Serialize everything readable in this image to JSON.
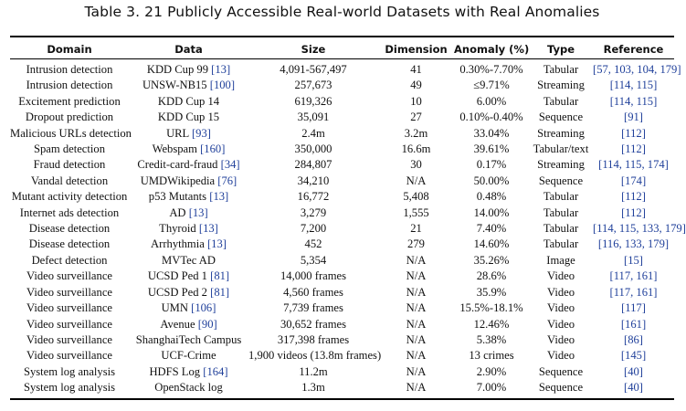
{
  "caption": "Table 3.  21 Publicly Accessible Real-world Datasets with Real Anomalies",
  "headers": [
    "Domain",
    "Data",
    "Size",
    "Dimension",
    "Anomaly (%)",
    "Type",
    "Reference"
  ],
  "rows": [
    {
      "domain": "Intrusion detection",
      "data": "KDD Cup 99",
      "data_ref": "[13]",
      "size": "4,091-567,497",
      "dimension": "41",
      "anomaly": "0.30%-7.70%",
      "type": "Tabular",
      "reference": "[57, 103, 104, 179]"
    },
    {
      "domain": "Intrusion detection",
      "data": "UNSW-NB15",
      "data_ref": "[100]",
      "size": "257,673",
      "dimension": "49",
      "anomaly": "≤9.71%",
      "type": "Streaming",
      "reference": "[114, 115]"
    },
    {
      "domain": "Excitement prediction",
      "data": "KDD Cup 14",
      "data_ref": "",
      "size": "619,326",
      "dimension": "10",
      "anomaly": "6.00%",
      "type": "Tabular",
      "reference": "[114, 115]"
    },
    {
      "domain": "Dropout prediction",
      "data": "KDD Cup 15",
      "data_ref": "",
      "size": "35,091",
      "dimension": "27",
      "anomaly": "0.10%-0.40%",
      "type": "Sequence",
      "reference": "[91]"
    },
    {
      "domain": "Malicious URLs detection",
      "data": "URL",
      "data_ref": "[93]",
      "size": "2.4m",
      "dimension": "3.2m",
      "anomaly": "33.04%",
      "type": "Streaming",
      "reference": "[112]"
    },
    {
      "domain": "Spam detection",
      "data": "Webspam",
      "data_ref": "[160]",
      "size": "350,000",
      "dimension": "16.6m",
      "anomaly": "39.61%",
      "type": "Tabular/text",
      "reference": "[112]"
    },
    {
      "domain": "Fraud detection",
      "data": "Credit-card-fraud",
      "data_ref": "[34]",
      "size": "284,807",
      "dimension": "30",
      "anomaly": "0.17%",
      "type": "Streaming",
      "reference": "[114, 115, 174]"
    },
    {
      "domain": "Vandal detection",
      "data": "UMDWikipedia",
      "data_ref": "[76]",
      "size": "34,210",
      "dimension": "N/A",
      "anomaly": "50.00%",
      "type": "Sequence",
      "reference": "[174]"
    },
    {
      "domain": "Mutant activity detection",
      "data": "p53 Mutants",
      "data_ref": "[13]",
      "size": "16,772",
      "dimension": "5,408",
      "anomaly": "0.48%",
      "type": "Tabular",
      "reference": "[112]"
    },
    {
      "domain": "Internet ads detection",
      "data": "AD",
      "data_ref": "[13]",
      "size": "3,279",
      "dimension": "1,555",
      "anomaly": "14.00%",
      "type": "Tabular",
      "reference": "[112]"
    },
    {
      "domain": "Disease detection",
      "data": "Thyroid",
      "data_ref": "[13]",
      "size": "7,200",
      "dimension": "21",
      "anomaly": "7.40%",
      "type": "Tabular",
      "reference": "[114, 115, 133, 179]"
    },
    {
      "domain": "Disease detection",
      "data": "Arrhythmia",
      "data_ref": "[13]",
      "size": "452",
      "dimension": "279",
      "anomaly": "14.60%",
      "type": "Tabular",
      "reference": "[116, 133, 179]"
    },
    {
      "domain": "Defect detection",
      "data": "MVTec AD",
      "data_ref": "",
      "size": "5,354",
      "dimension": "N/A",
      "anomaly": "35.26%",
      "type": "Image",
      "reference": "[15]"
    },
    {
      "domain": "Video surveillance",
      "data": "UCSD Ped 1",
      "data_ref": "[81]",
      "size": "14,000 frames",
      "dimension": "N/A",
      "anomaly": "28.6%",
      "type": "Video",
      "reference": "[117, 161]"
    },
    {
      "domain": "Video surveillance",
      "data": "UCSD Ped 2",
      "data_ref": "[81]",
      "size": "4,560 frames",
      "dimension": "N/A",
      "anomaly": "35.9%",
      "type": "Video",
      "reference": "[117, 161]"
    },
    {
      "domain": "Video surveillance",
      "data": "UMN",
      "data_ref": "[106]",
      "size": "7,739 frames",
      "dimension": "N/A",
      "anomaly": "15.5%-18.1%",
      "type": "Video",
      "reference": "[117]"
    },
    {
      "domain": "Video surveillance",
      "data": "Avenue",
      "data_ref": "[90]",
      "size": "30,652 frames",
      "dimension": "N/A",
      "anomaly": "12.46%",
      "type": "Video",
      "reference": "[161]"
    },
    {
      "domain": "Video surveillance",
      "data": "ShanghaiTech Campus",
      "data_ref": "",
      "size": "317,398 frames",
      "dimension": "N/A",
      "anomaly": "5.38%",
      "type": "Video",
      "reference": "[86]"
    },
    {
      "domain": "Video surveillance",
      "data": "UCF-Crime",
      "data_ref": "",
      "size": "1,900 videos (13.8m frames)",
      "dimension": "N/A",
      "anomaly": "13 crimes",
      "type": "Video",
      "reference": "[145]"
    },
    {
      "domain": "System log analysis",
      "data": "HDFS Log",
      "data_ref": "[164]",
      "size": "11.2m",
      "dimension": "N/A",
      "anomaly": "2.90%",
      "type": "Sequence",
      "reference": "[40]"
    },
    {
      "domain": "System log analysis",
      "data": "OpenStack log",
      "data_ref": "",
      "size": "1.3m",
      "dimension": "N/A",
      "anomaly": "7.00%",
      "type": "Sequence",
      "reference": "[40]"
    }
  ]
}
